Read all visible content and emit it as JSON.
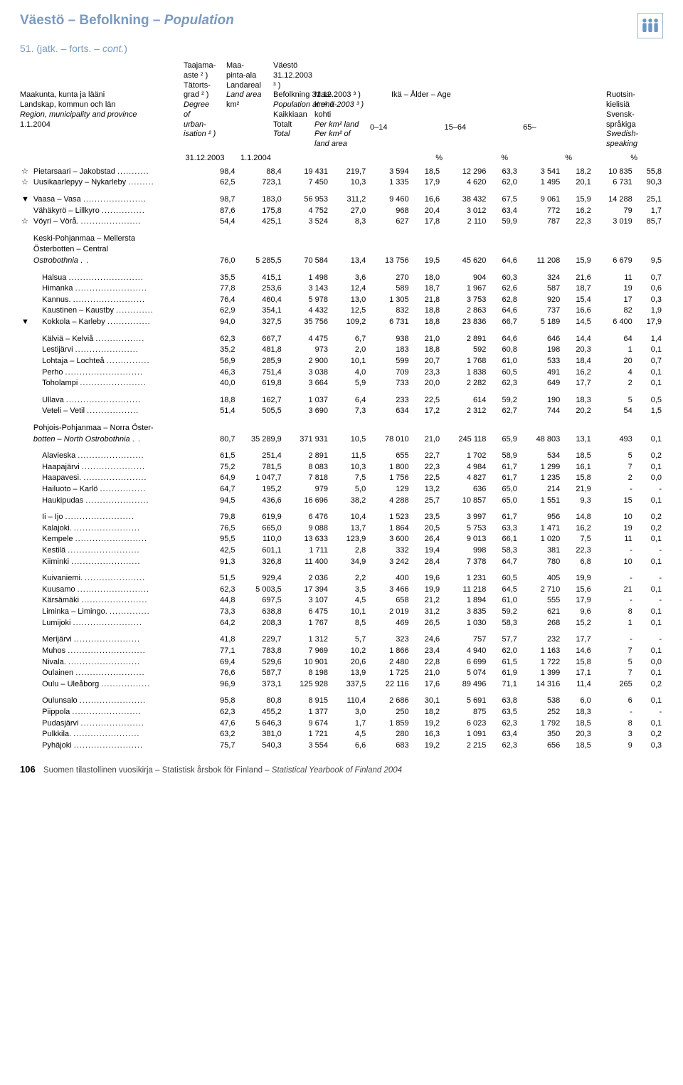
{
  "title_parts": [
    "Väestö – Befolkning – ",
    "Population"
  ],
  "subtitle_parts": [
    "51.   (jatk. – forts. – ",
    "cont.",
    ")"
  ],
  "header": {
    "col1": [
      "Maakunta, kunta ja lääni",
      "Landskap, kommun och län",
      "Region, municipality and province",
      "1.1.2004"
    ],
    "col2": [
      "Taajama-",
      "aste ² )",
      "Tätorts-",
      "grad ² )",
      "Degree",
      "of",
      "urban-",
      "isation ² )"
    ],
    "col3": [
      "Maa-",
      "pinta-ala",
      "Landareal",
      "Land area",
      "km²"
    ],
    "col4_top": [
      "Väestö 31.12.2003 ³ )",
      "Befolkning 31.12.2003 ³ )",
      "Population at end-2003 ³ )"
    ],
    "col4a": [
      "Kaikkiaan",
      "Totalt",
      "Total"
    ],
    "col4b": [
      "Maa-km²:ä",
      "kohti",
      "Per km² land",
      "Per km² of",
      "land area"
    ],
    "age_label": "Ikä – Ålder – Age",
    "age_cols": [
      "0–14",
      "15–64",
      "65–"
    ],
    "col_last": [
      "Ruotsin-",
      "kielisiä",
      "Svensk-",
      "språkiga",
      "Swedish-",
      "speaking"
    ],
    "date1": "31.12.2003",
    "date2": "1.1.2004",
    "pct": "%"
  },
  "rows": [
    {
      "s": "☆",
      "name": "Pietarsaari – Jakobstad",
      "v": [
        "98,4",
        "88,4",
        "19 431",
        "219,7",
        "3 594",
        "18,5",
        "12 296",
        "63,3",
        "3 541",
        "18,2",
        "10 835",
        "55,8"
      ]
    },
    {
      "s": "☆",
      "name": "Uusikaarlepyy – Nykarleby",
      "v": [
        "62,5",
        "723,1",
        "7 450",
        "10,3",
        "1 335",
        "17,9",
        "4 620",
        "62,0",
        "1 495",
        "20,1",
        "6 731",
        "90,3"
      ]
    },
    {
      "gap": true
    },
    {
      "s": "▼",
      "name": "Vaasa – Vasa",
      "v": [
        "98,7",
        "183,0",
        "56 953",
        "311,2",
        "9 460",
        "16,6",
        "38 432",
        "67,5",
        "9 061",
        "15,9",
        "14 288",
        "25,1"
      ]
    },
    {
      "s": "",
      "name": "Vähäkyrö – Lillkyro",
      "v": [
        "87,6",
        "175,8",
        "4 752",
        "27,0",
        "968",
        "20,4",
        "3 012",
        "63,4",
        "772",
        "16,2",
        "79",
        "1,7"
      ]
    },
    {
      "s": "☆",
      "name": "Vöyri – Vörå.",
      "v": [
        "54,4",
        "425,1",
        "3 524",
        "8,3",
        "627",
        "17,8",
        "2 110",
        "59,9",
        "787",
        "22,3",
        "3 019",
        "85,7"
      ]
    },
    {
      "gap": true
    },
    {
      "section": true,
      "lines": [
        "Keski-Pohjanmaa – Mellersta",
        "        Österbotten – Central"
      ],
      "name": "        Ostrobothnia",
      "nameItalic": true,
      "v": [
        "76,0",
        "5 285,5",
        "70 584",
        "13,4",
        "13 756",
        "19,5",
        "45 620",
        "64,6",
        "11 208",
        "15,9",
        "6 679",
        "9,5"
      ]
    },
    {
      "gap": true
    },
    {
      "s": "",
      "name": "Halsua",
      "indent": true,
      "v": [
        "35,5",
        "415,1",
        "1 498",
        "3,6",
        "270",
        "18,0",
        "904",
        "60,3",
        "324",
        "21,6",
        "11",
        "0,7"
      ]
    },
    {
      "s": "",
      "name": "Himanka",
      "indent": true,
      "v": [
        "77,8",
        "253,6",
        "3 143",
        "12,4",
        "589",
        "18,7",
        "1 967",
        "62,6",
        "587",
        "18,7",
        "19",
        "0,6"
      ]
    },
    {
      "s": "",
      "name": "Kannus.",
      "indent": true,
      "v": [
        "76,4",
        "460,4",
        "5 978",
        "13,0",
        "1 305",
        "21,8",
        "3 753",
        "62,8",
        "920",
        "15,4",
        "17",
        "0,3"
      ]
    },
    {
      "s": "",
      "name": "Kaustinen – Kaustby",
      "indent": true,
      "v": [
        "62,9",
        "354,1",
        "4 432",
        "12,5",
        "832",
        "18,8",
        "2 863",
        "64,6",
        "737",
        "16,6",
        "82",
        "1,9"
      ]
    },
    {
      "s": "▼",
      "name": "Kokkola – Karleby",
      "indent": true,
      "v": [
        "94,0",
        "327,5",
        "35 756",
        "109,2",
        "6 731",
        "18,8",
        "23 836",
        "66,7",
        "5 189",
        "14,5",
        "6 400",
        "17,9"
      ]
    },
    {
      "gap": true
    },
    {
      "s": "",
      "name": "Kälviä – Kelviå",
      "indent": true,
      "v": [
        "62,3",
        "667,7",
        "4 475",
        "6,7",
        "938",
        "21,0",
        "2 891",
        "64,6",
        "646",
        "14,4",
        "64",
        "1,4"
      ]
    },
    {
      "s": "",
      "name": "Lestijärvi",
      "indent": true,
      "v": [
        "35,2",
        "481,8",
        "973",
        "2,0",
        "183",
        "18,8",
        "592",
        "60,8",
        "198",
        "20,3",
        "1",
        "0,1"
      ]
    },
    {
      "s": "",
      "name": "Lohtaja – Lochteå",
      "indent": true,
      "v": [
        "56,9",
        "285,9",
        "2 900",
        "10,1",
        "599",
        "20,7",
        "1 768",
        "61,0",
        "533",
        "18,4",
        "20",
        "0,7"
      ]
    },
    {
      "s": "",
      "name": "Perho",
      "indent": true,
      "v": [
        "46,3",
        "751,4",
        "3 038",
        "4,0",
        "709",
        "23,3",
        "1 838",
        "60,5",
        "491",
        "16,2",
        "4",
        "0,1"
      ]
    },
    {
      "s": "",
      "name": "Toholampi",
      "indent": true,
      "v": [
        "40,0",
        "619,8",
        "3 664",
        "5,9",
        "733",
        "20,0",
        "2 282",
        "62,3",
        "649",
        "17,7",
        "2",
        "0,1"
      ]
    },
    {
      "gap": true
    },
    {
      "s": "",
      "name": "Ullava",
      "indent": true,
      "v": [
        "18,8",
        "162,7",
        "1 037",
        "6,4",
        "233",
        "22,5",
        "614",
        "59,2",
        "190",
        "18,3",
        "5",
        "0,5"
      ]
    },
    {
      "s": "",
      "name": "Veteli – Vetil",
      "indent": true,
      "v": [
        "51,4",
        "505,5",
        "3 690",
        "7,3",
        "634",
        "17,2",
        "2 312",
        "62,7",
        "744",
        "20,2",
        "54",
        "1,5"
      ]
    },
    {
      "gap": true
    },
    {
      "section": true,
      "lines": [
        "Pohjois-Pohjanmaa – Norra Öster-"
      ],
      "name": "        botten – North Ostrobothnia",
      "nameItalic": "partial",
      "v": [
        "80,7",
        "35 289,9",
        "371 931",
        "10,5",
        "78 010",
        "21,0",
        "245 118",
        "65,9",
        "48 803",
        "13,1",
        "493",
        "0,1"
      ]
    },
    {
      "gap": true
    },
    {
      "s": "",
      "name": "Alavieska",
      "indent": true,
      "v": [
        "61,5",
        "251,4",
        "2 891",
        "11,5",
        "655",
        "22,7",
        "1 702",
        "58,9",
        "534",
        "18,5",
        "5",
        "0,2"
      ]
    },
    {
      "s": "",
      "name": "Haapajärvi",
      "indent": true,
      "v": [
        "75,2",
        "781,5",
        "8 083",
        "10,3",
        "1 800",
        "22,3",
        "4 984",
        "61,7",
        "1 299",
        "16,1",
        "7",
        "0,1"
      ]
    },
    {
      "s": "",
      "name": "Haapavesi.",
      "indent": true,
      "v": [
        "64,9",
        "1 047,7",
        "7 818",
        "7,5",
        "1 756",
        "22,5",
        "4 827",
        "61,7",
        "1 235",
        "15,8",
        "2",
        "0,0"
      ]
    },
    {
      "s": "",
      "name": "Hailuoto – Karlö",
      "indent": true,
      "v": [
        "64,7",
        "195,2",
        "979",
        "5,0",
        "129",
        "13,2",
        "636",
        "65,0",
        "214",
        "21,9",
        "-",
        "-"
      ]
    },
    {
      "s": "",
      "name": "Haukipudas",
      "indent": true,
      "v": [
        "94,5",
        "436,6",
        "16 696",
        "38,2",
        "4 288",
        "25,7",
        "10 857",
        "65,0",
        "1 551",
        "9,3",
        "15",
        "0,1"
      ]
    },
    {
      "gap": true
    },
    {
      "s": "",
      "name": "Ii – Ijo",
      "indent": true,
      "v": [
        "79,8",
        "619,9",
        "6 476",
        "10,4",
        "1 523",
        "23,5",
        "3 997",
        "61,7",
        "956",
        "14,8",
        "10",
        "0,2"
      ]
    },
    {
      "s": "",
      "name": "Kalajoki.",
      "indent": true,
      "v": [
        "76,5",
        "665,0",
        "9 088",
        "13,7",
        "1 864",
        "20,5",
        "5 753",
        "63,3",
        "1 471",
        "16,2",
        "19",
        "0,2"
      ]
    },
    {
      "s": "",
      "name": "Kempele",
      "indent": true,
      "v": [
        "95,5",
        "110,0",
        "13 633",
        "123,9",
        "3 600",
        "26,4",
        "9 013",
        "66,1",
        "1 020",
        "7,5",
        "11",
        "0,1"
      ]
    },
    {
      "s": "",
      "name": "Kestilä",
      "indent": true,
      "v": [
        "42,5",
        "601,1",
        "1 711",
        "2,8",
        "332",
        "19,4",
        "998",
        "58,3",
        "381",
        "22,3",
        "-",
        "-"
      ]
    },
    {
      "s": "",
      "name": "Kiiminki",
      "indent": true,
      "v": [
        "91,3",
        "326,8",
        "11 400",
        "34,9",
        "3 242",
        "28,4",
        "7 378",
        "64,7",
        "780",
        "6,8",
        "10",
        "0,1"
      ]
    },
    {
      "gap": true
    },
    {
      "s": "",
      "name": "Kuivaniemi.",
      "indent": true,
      "v": [
        "51,5",
        "929,4",
        "2 036",
        "2,2",
        "400",
        "19,6",
        "1 231",
        "60,5",
        "405",
        "19,9",
        "-",
        "-"
      ]
    },
    {
      "s": "",
      "name": "Kuusamo",
      "indent": true,
      "v": [
        "62,3",
        "5 003,5",
        "17 394",
        "3,5",
        "3 466",
        "19,9",
        "11 218",
        "64,5",
        "2 710",
        "15,6",
        "21",
        "0,1"
      ]
    },
    {
      "s": "",
      "name": "Kärsämäki",
      "indent": true,
      "v": [
        "44,8",
        "697,5",
        "3 107",
        "4,5",
        "658",
        "21,2",
        "1 894",
        "61,0",
        "555",
        "17,9",
        "-",
        "-"
      ]
    },
    {
      "s": "",
      "name": "Liminka – Limingo.",
      "indent": true,
      "v": [
        "73,3",
        "638,8",
        "6 475",
        "10,1",
        "2 019",
        "31,2",
        "3 835",
        "59,2",
        "621",
        "9,6",
        "8",
        "0,1"
      ]
    },
    {
      "s": "",
      "name": "Lumijoki",
      "indent": true,
      "v": [
        "64,2",
        "208,3",
        "1 767",
        "8,5",
        "469",
        "26,5",
        "1 030",
        "58,3",
        "268",
        "15,2",
        "1",
        "0,1"
      ]
    },
    {
      "gap": true
    },
    {
      "s": "",
      "name": "Merijärvi",
      "indent": true,
      "v": [
        "41,8",
        "229,7",
        "1 312",
        "5,7",
        "323",
        "24,6",
        "757",
        "57,7",
        "232",
        "17,7",
        "-",
        "-"
      ]
    },
    {
      "s": "",
      "name": "Muhos",
      "indent": true,
      "v": [
        "77,1",
        "783,8",
        "7 969",
        "10,2",
        "1 866",
        "23,4",
        "4 940",
        "62,0",
        "1 163",
        "14,6",
        "7",
        "0,1"
      ]
    },
    {
      "s": "",
      "name": "Nivala.",
      "indent": true,
      "v": [
        "69,4",
        "529,6",
        "10 901",
        "20,6",
        "2 480",
        "22,8",
        "6 699",
        "61,5",
        "1 722",
        "15,8",
        "5",
        "0,0"
      ]
    },
    {
      "s": "",
      "name": "Oulainen",
      "indent": true,
      "v": [
        "76,6",
        "587,7",
        "8 198",
        "13,9",
        "1 725",
        "21,0",
        "5 074",
        "61,9",
        "1 399",
        "17,1",
        "7",
        "0,1"
      ]
    },
    {
      "s": "",
      "name": "Oulu – Uleåborg",
      "indent": true,
      "v": [
        "96,9",
        "373,1",
        "125 928",
        "337,5",
        "22 116",
        "17,6",
        "89 496",
        "71,1",
        "14 316",
        "11,4",
        "265",
        "0,2"
      ]
    },
    {
      "gap": true
    },
    {
      "s": "",
      "name": "Oulunsalo",
      "indent": true,
      "v": [
        "95,8",
        "80,8",
        "8 915",
        "110,4",
        "2 686",
        "30,1",
        "5 691",
        "63,8",
        "538",
        "6,0",
        "6",
        "0,1"
      ]
    },
    {
      "s": "",
      "name": "Piippola",
      "indent": true,
      "v": [
        "62,3",
        "455,2",
        "1 377",
        "3,0",
        "250",
        "18,2",
        "875",
        "63,5",
        "252",
        "18,3",
        "-",
        "-"
      ]
    },
    {
      "s": "",
      "name": "Pudasjärvi",
      "indent": true,
      "v": [
        "47,6",
        "5 646,3",
        "9 674",
        "1,7",
        "1 859",
        "19,2",
        "6 023",
        "62,3",
        "1 792",
        "18,5",
        "8",
        "0,1"
      ]
    },
    {
      "s": "",
      "name": "Pulkkila.",
      "indent": true,
      "v": [
        "63,2",
        "381,0",
        "1 721",
        "4,5",
        "280",
        "16,3",
        "1 091",
        "63,4",
        "350",
        "20,3",
        "3",
        "0,2"
      ]
    },
    {
      "s": "",
      "name": "Pyhäjoki",
      "indent": true,
      "v": [
        "75,7",
        "540,3",
        "3 554",
        "6,6",
        "683",
        "19,2",
        "2 215",
        "62,3",
        "656",
        "18,5",
        "9",
        "0,3"
      ]
    }
  ],
  "footer": {
    "page": "106",
    "text_parts": [
      "Suomen tilastollinen vuosikirja – Statistisk årsbok för Finland – ",
      "Statistical Yearbook of Finland 2004"
    ]
  }
}
